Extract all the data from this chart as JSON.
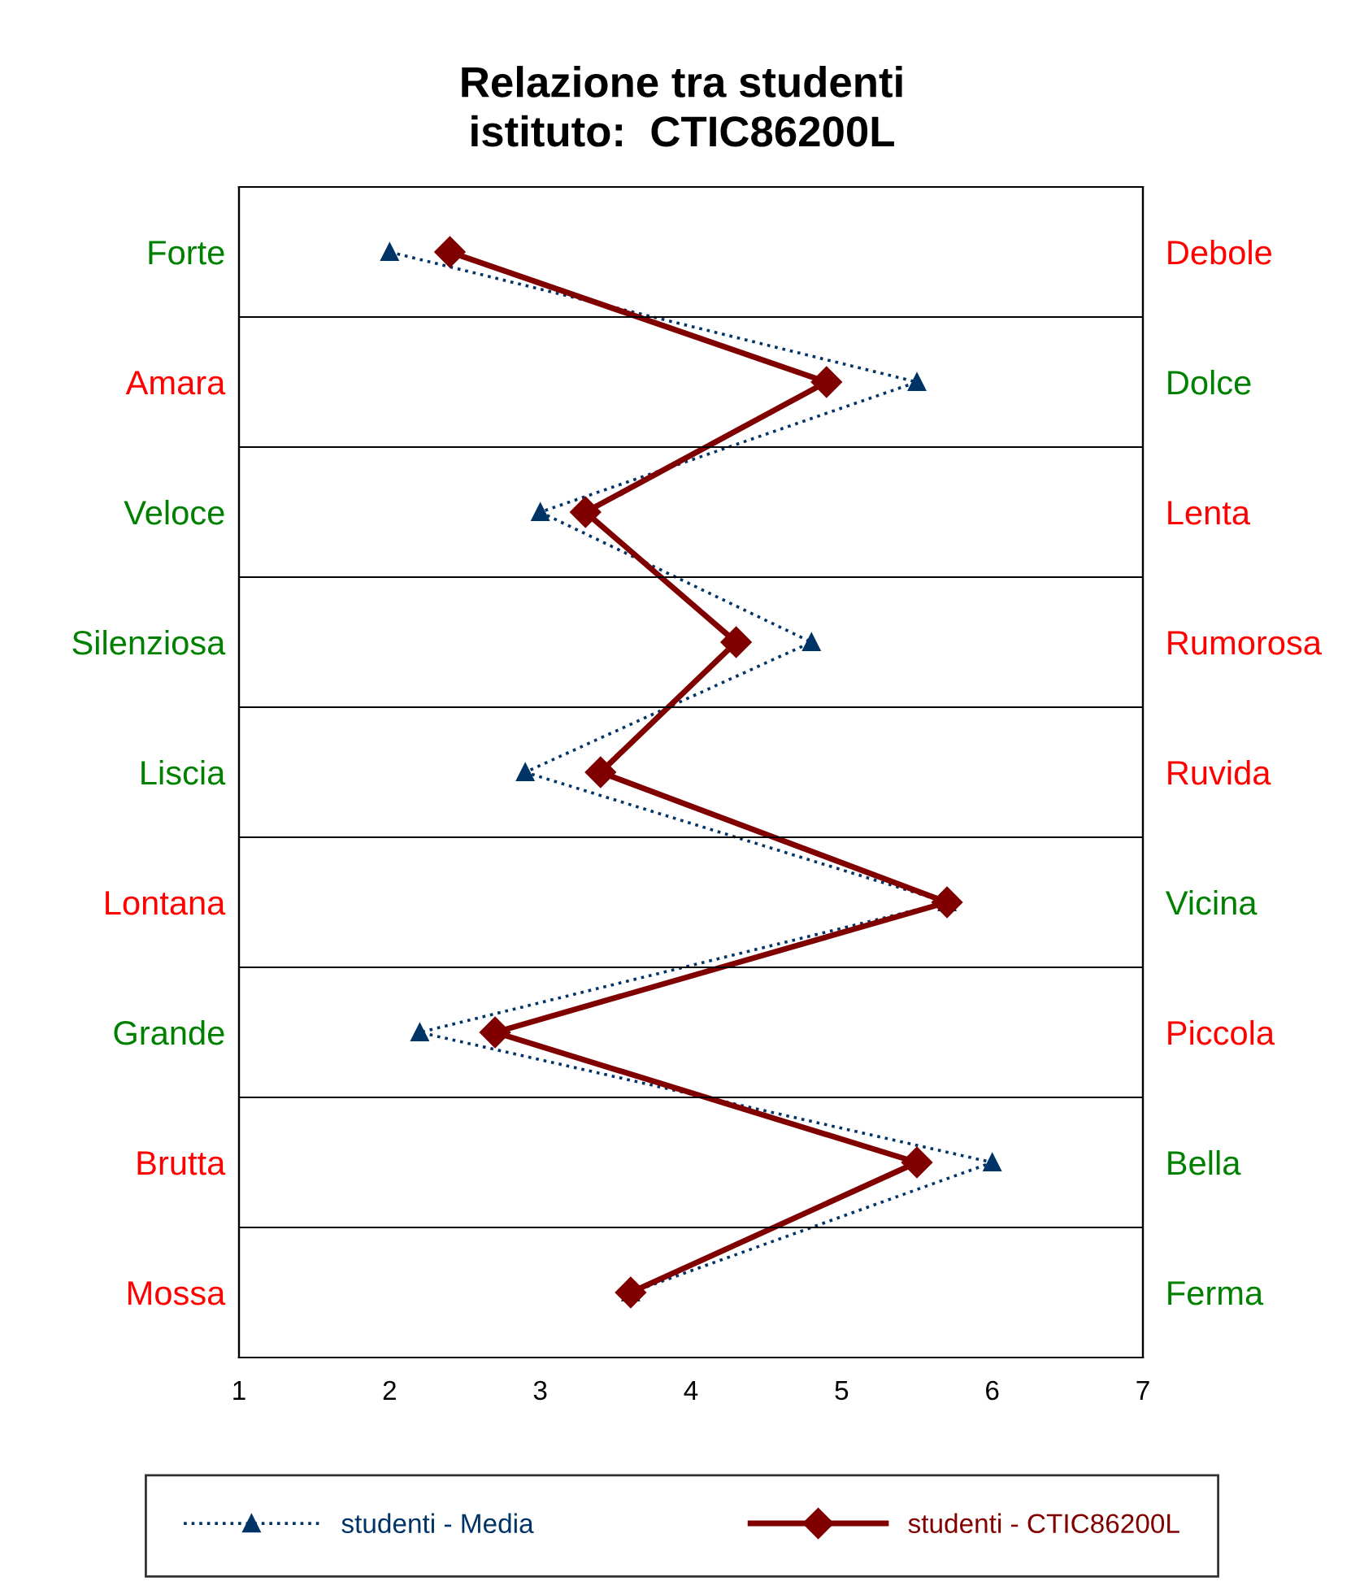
{
  "chart_data": {
    "type": "line",
    "orientation": "horizontal",
    "title": "Relazione tra studenti\nistituto:  CTIC86200L",
    "categories": [
      "Forte",
      "Amara",
      "Veloce",
      "Silenziosa",
      "Liscia",
      "Lontana",
      "Grande",
      "Brutta",
      "Mossa"
    ],
    "y2_categories": [
      "Debole",
      "Dolce",
      "Lenta",
      "Rumorosa",
      "Ruvida",
      "Vicina",
      "Piccola",
      "Bella",
      "Ferma"
    ],
    "series": [
      {
        "name": "studenti - Media",
        "color": "#003366",
        "marker": "triangle",
        "line_style": "dotted",
        "values": [
          2.0,
          5.5,
          3.0,
          4.8,
          2.9,
          5.7,
          2.2,
          6.0,
          3.6
        ]
      },
      {
        "name": "studenti - CTIC86200L",
        "color": "#800000",
        "marker": "diamond",
        "line_style": "solid",
        "values": [
          2.4,
          4.9,
          3.3,
          4.3,
          3.4,
          5.7,
          2.7,
          5.5,
          3.6
        ]
      }
    ],
    "xlim": [
      1,
      7
    ],
    "xticks": [
      1,
      2,
      3,
      4,
      5,
      6,
      7
    ],
    "grid": "y",
    "legend": "bottom"
  }
}
